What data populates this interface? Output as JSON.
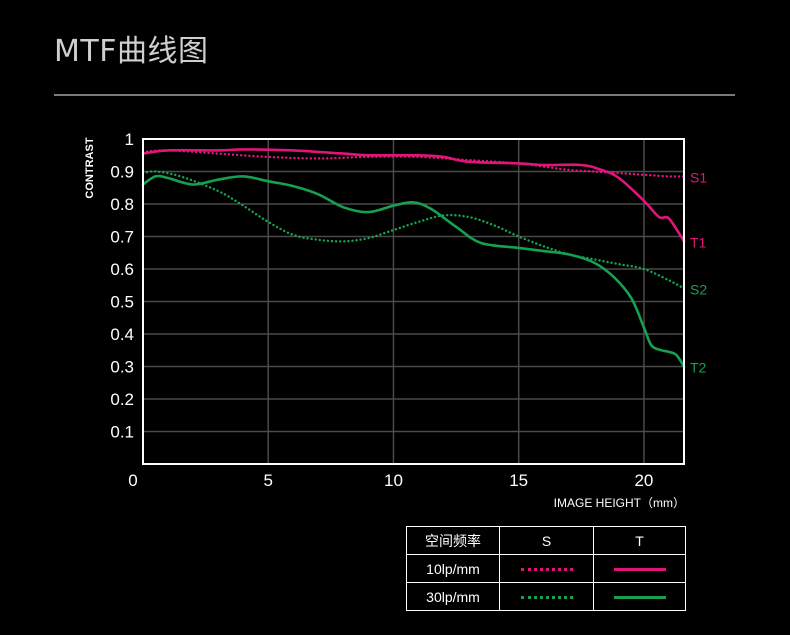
{
  "title": "MTF曲线图",
  "chart_data": {
    "type": "line",
    "xlabel": "IMAGE HEIGHT（mm）",
    "ylabel": "CONTRAST",
    "xlim": [
      0,
      21.6
    ],
    "ylim": [
      0,
      1
    ],
    "x_ticks": [
      0,
      5,
      10,
      15,
      20
    ],
    "x_tick_labels": [
      "0",
      "5",
      "10",
      "15",
      "20"
    ],
    "y_ticks": [
      0.1,
      0.2,
      0.3,
      0.4,
      0.5,
      0.6,
      0.7,
      0.8,
      0.9,
      1
    ],
    "y_tick_labels": [
      "0.1",
      "0.2",
      "0.3",
      "0.4",
      "0.5",
      "0.6",
      "0.7",
      "0.8",
      "0.9",
      "1"
    ],
    "grid": true,
    "series": [
      {
        "name": "S1",
        "color": "#e0157a",
        "dash": "dotted",
        "points": [
          [
            0,
            0.96
          ],
          [
            1,
            0.965
          ],
          [
            3,
            0.955
          ],
          [
            5,
            0.945
          ],
          [
            7,
            0.94
          ],
          [
            9,
            0.945
          ],
          [
            11,
            0.945
          ],
          [
            13,
            0.935
          ],
          [
            15,
            0.925
          ],
          [
            16,
            0.915
          ],
          [
            17,
            0.905
          ],
          [
            18,
            0.9
          ],
          [
            19,
            0.895
          ],
          [
            20,
            0.89
          ],
          [
            21,
            0.885
          ],
          [
            21.6,
            0.885
          ]
        ]
      },
      {
        "name": "T1",
        "color": "#e0157a",
        "dash": "solid",
        "points": [
          [
            0,
            0.955
          ],
          [
            1,
            0.965
          ],
          [
            3,
            0.965
          ],
          [
            4,
            0.968
          ],
          [
            6,
            0.965
          ],
          [
            8,
            0.955
          ],
          [
            9,
            0.95
          ],
          [
            11,
            0.95
          ],
          [
            12,
            0.945
          ],
          [
            13,
            0.93
          ],
          [
            15,
            0.925
          ],
          [
            16,
            0.92
          ],
          [
            17.5,
            0.92
          ],
          [
            18.3,
            0.905
          ],
          [
            19,
            0.88
          ],
          [
            20,
            0.81
          ],
          [
            20.6,
            0.76
          ],
          [
            21,
            0.755
          ],
          [
            21.6,
            0.685
          ]
        ]
      },
      {
        "name": "S2",
        "color": "#16a050",
        "dash": "dotted",
        "points": [
          [
            0,
            0.895
          ],
          [
            0.5,
            0.9
          ],
          [
            1.5,
            0.885
          ],
          [
            3,
            0.84
          ],
          [
            4,
            0.795
          ],
          [
            5,
            0.745
          ],
          [
            6,
            0.705
          ],
          [
            7,
            0.69
          ],
          [
            8,
            0.685
          ],
          [
            9,
            0.695
          ],
          [
            10,
            0.72
          ],
          [
            11,
            0.745
          ],
          [
            12,
            0.765
          ],
          [
            13,
            0.76
          ],
          [
            14,
            0.735
          ],
          [
            15,
            0.7
          ],
          [
            16,
            0.67
          ],
          [
            17,
            0.645
          ],
          [
            18,
            0.63
          ],
          [
            19,
            0.615
          ],
          [
            20,
            0.6
          ],
          [
            21,
            0.565
          ],
          [
            21.6,
            0.54
          ]
        ]
      },
      {
        "name": "T2",
        "color": "#16a050",
        "dash": "solid",
        "points": [
          [
            0,
            0.86
          ],
          [
            0.5,
            0.885
          ],
          [
            1,
            0.88
          ],
          [
            2,
            0.86
          ],
          [
            3,
            0.875
          ],
          [
            4,
            0.885
          ],
          [
            5,
            0.87
          ],
          [
            6,
            0.855
          ],
          [
            7,
            0.83
          ],
          [
            8,
            0.79
          ],
          [
            9,
            0.775
          ],
          [
            10,
            0.795
          ],
          [
            10.8,
            0.805
          ],
          [
            11.5,
            0.785
          ],
          [
            12.5,
            0.73
          ],
          [
            13.5,
            0.68
          ],
          [
            15,
            0.665
          ],
          [
            16,
            0.655
          ],
          [
            17,
            0.645
          ],
          [
            18,
            0.62
          ],
          [
            18.8,
            0.575
          ],
          [
            19.5,
            0.51
          ],
          [
            20,
            0.42
          ],
          [
            20.3,
            0.365
          ],
          [
            20.7,
            0.35
          ],
          [
            21,
            0.345
          ],
          [
            21.3,
            0.335
          ],
          [
            21.6,
            0.3
          ]
        ]
      }
    ]
  },
  "legend_table": {
    "header": [
      "空间频率",
      "S",
      "T"
    ],
    "rows": [
      {
        "label": "10lp/mm",
        "s_color": "#e0157a",
        "t_color": "#e0157a"
      },
      {
        "label": "30lp/mm",
        "s_color": "#16a050",
        "t_color": "#16a050"
      }
    ]
  }
}
